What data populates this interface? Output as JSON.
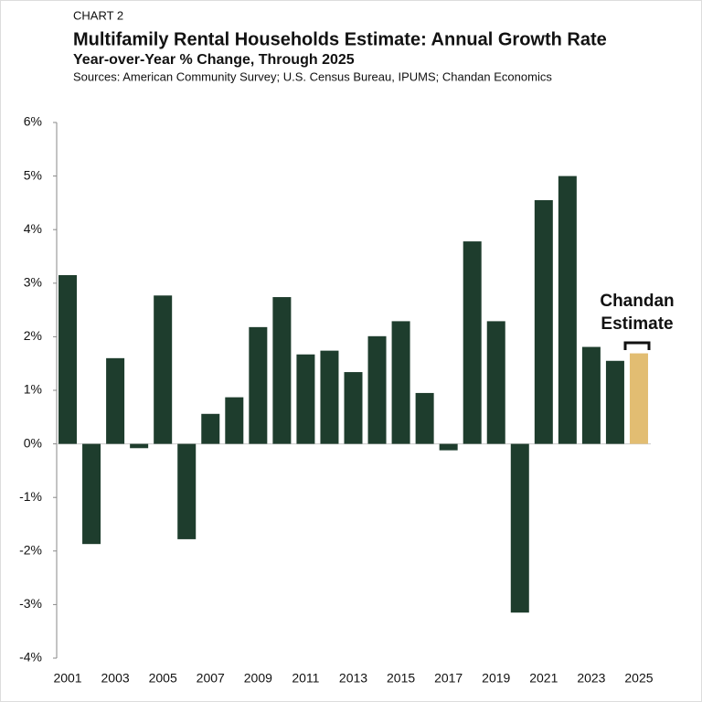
{
  "chart_data": {
    "type": "bar",
    "label": "CHART 2",
    "title": "Multifamily Rental Households Estimate: Annual Growth Rate",
    "subtitle": "Year-over-Year % Change, Through 2025",
    "source": "Sources: American Community Survey; U.S. Census Bureau, IPUMS; Chandan Economics",
    "annotation": [
      "Chandan",
      "Estimate"
    ],
    "categories": [
      "2001",
      null,
      "2003",
      null,
      "2005",
      null,
      "2007",
      null,
      "2009",
      null,
      "2011",
      null,
      "2013",
      null,
      "2015",
      null,
      "2017",
      null,
      "2019",
      null,
      "2021",
      null,
      "2023",
      null,
      "2025"
    ],
    "values": [
      3.15,
      -1.87,
      1.6,
      -0.08,
      2.77,
      -1.78,
      0.56,
      0.87,
      2.18,
      2.74,
      1.67,
      1.74,
      1.34,
      2.01,
      2.29,
      0.95,
      -0.12,
      3.78,
      2.29,
      -3.15,
      4.55,
      5.0,
      1.81,
      1.55,
      1.69
    ],
    "colors": [
      "#1e3d2d",
      "#1e3d2d",
      "#1e3d2d",
      "#1e3d2d",
      "#1e3d2d",
      "#1e3d2d",
      "#1e3d2d",
      "#1e3d2d",
      "#1e3d2d",
      "#1e3d2d",
      "#1e3d2d",
      "#1e3d2d",
      "#1e3d2d",
      "#1e3d2d",
      "#1e3d2d",
      "#1e3d2d",
      "#1e3d2d",
      "#1e3d2d",
      "#1e3d2d",
      "#1e3d2d",
      "#1e3d2d",
      "#1e3d2d",
      "#1e3d2d",
      "#1e3d2d",
      "#e2bd72"
    ],
    "ylim": [
      -4,
      6
    ],
    "yticks": [
      {
        "value": -4,
        "label": "-4%"
      },
      {
        "value": -3,
        "label": "-3%"
      },
      {
        "value": -2,
        "label": "-2%"
      },
      {
        "value": -1,
        "label": "-1%"
      },
      {
        "value": 0,
        "label": "0%"
      },
      {
        "value": 1,
        "label": "1%"
      },
      {
        "value": 2,
        "label": "2%"
      },
      {
        "value": 3,
        "label": "3%"
      },
      {
        "value": 4,
        "label": "4%"
      },
      {
        "value": 5,
        "label": "5%"
      },
      {
        "value": 6,
        "label": "6%"
      }
    ]
  }
}
